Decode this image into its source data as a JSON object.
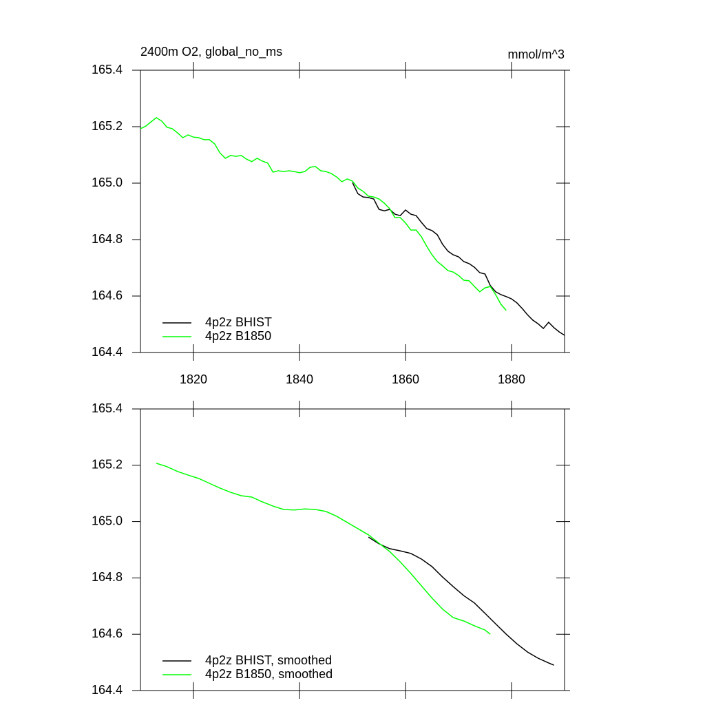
{
  "chart_data": [
    {
      "type": "line",
      "title": "2400m O2, global_no_ms",
      "subtitle": "mmol/m^3",
      "xlim": [
        1810,
        1890
      ],
      "xticks": [
        1820,
        1840,
        1860,
        1880
      ],
      "show_xtick_labels": true,
      "ylim": [
        164.4,
        165.4
      ],
      "yticks": [
        164.4,
        164.6,
        164.8,
        {
          "value": 165,
          "label": "165.0"
        },
        165.2,
        165.4
      ],
      "legend": "lower left",
      "series": [
        {
          "name": "4p2z BHIST",
          "color": "#000000",
          "x": [
            1850,
            1851,
            1852,
            1853,
            1854,
            1855,
            1856,
            1857,
            1858,
            1859,
            1860,
            1861,
            1862,
            1863,
            1864,
            1865,
            1866,
            1867,
            1868,
            1869,
            1870,
            1871,
            1872,
            1873,
            1874,
            1875,
            1876,
            1877,
            1878,
            1879,
            1880,
            1881,
            1882,
            1883,
            1884,
            1885,
            1886,
            1887,
            1888,
            1889,
            1890
          ],
          "values": [
            165.002,
            164.963,
            164.951,
            164.949,
            164.944,
            164.907,
            164.902,
            164.907,
            164.89,
            164.885,
            164.905,
            164.89,
            164.885,
            164.861,
            164.839,
            164.832,
            164.817,
            164.783,
            164.759,
            164.746,
            164.739,
            164.722,
            164.715,
            164.702,
            164.683,
            164.678,
            164.637,
            164.615,
            164.605,
            164.598,
            164.59,
            164.576,
            164.556,
            164.534,
            164.515,
            164.502,
            164.485,
            164.507,
            164.488,
            164.473,
            164.461
          ]
        },
        {
          "name": "4p2z B1850",
          "color": "#00ff00",
          "x": [
            1810,
            1811,
            1812,
            1813,
            1814,
            1815,
            1816,
            1817,
            1818,
            1819,
            1820,
            1821,
            1822,
            1823,
            1824,
            1825,
            1826,
            1827,
            1828,
            1829,
            1830,
            1831,
            1832,
            1833,
            1834,
            1835,
            1836,
            1837,
            1838,
            1839,
            1840,
            1841,
            1842,
            1843,
            1844,
            1845,
            1846,
            1847,
            1848,
            1849,
            1850,
            1851,
            1852,
            1853,
            1854,
            1855,
            1856,
            1857,
            1858,
            1859,
            1860,
            1861,
            1862,
            1863,
            1864,
            1865,
            1866,
            1867,
            1868,
            1869,
            1870,
            1871,
            1872,
            1873,
            1874,
            1875,
            1876,
            1877,
            1878,
            1879
          ],
          "values": [
            165.193,
            165.202,
            165.217,
            165.232,
            165.22,
            165.198,
            165.193,
            165.178,
            165.161,
            165.171,
            165.163,
            165.161,
            165.154,
            165.154,
            165.139,
            165.107,
            165.088,
            165.098,
            165.095,
            165.098,
            165.085,
            165.076,
            165.088,
            165.078,
            165.071,
            165.039,
            165.044,
            165.041,
            165.044,
            165.041,
            165.037,
            165.041,
            165.056,
            165.059,
            165.044,
            165.041,
            165.034,
            165.022,
            165.005,
            165.015,
            165.007,
            164.983,
            164.971,
            164.954,
            164.951,
            164.944,
            164.929,
            164.91,
            164.878,
            164.878,
            164.859,
            164.834,
            164.834,
            164.81,
            164.776,
            164.746,
            164.722,
            164.707,
            164.69,
            164.685,
            164.673,
            164.656,
            164.654,
            164.634,
            164.615,
            164.629,
            164.634,
            164.605,
            164.571,
            164.549
          ]
        }
      ]
    },
    {
      "type": "line",
      "xlim": [
        1810,
        1890
      ],
      "xticks": [
        1820,
        1840,
        1860,
        1880
      ],
      "show_xtick_labels": false,
      "ylim": [
        164.4,
        165.4
      ],
      "yticks": [
        164.4,
        164.6,
        164.8,
        {
          "value": 165,
          "label": "165.0"
        },
        165.2,
        165.4
      ],
      "legend": "lower left",
      "series": [
        {
          "name": "4p2z BHIST, smoothed",
          "color": "#000000",
          "x": [
            1853,
            1855,
            1857,
            1859,
            1861,
            1863,
            1865,
            1867,
            1869,
            1871,
            1873,
            1875,
            1877,
            1879,
            1881,
            1883,
            1885,
            1887,
            1888
          ],
          "values": [
            164.945,
            164.921,
            164.904,
            164.896,
            164.887,
            164.867,
            164.84,
            164.803,
            164.769,
            164.737,
            164.711,
            164.674,
            164.637,
            164.6,
            164.566,
            164.537,
            164.515,
            164.498,
            164.49
          ]
        },
        {
          "name": "4p2z B1850, smoothed",
          "color": "#00ff00",
          "x": [
            1813,
            1815,
            1817,
            1819,
            1821,
            1823,
            1825,
            1827,
            1829,
            1831,
            1833,
            1835,
            1837,
            1839,
            1841,
            1843,
            1845,
            1847,
            1849,
            1851,
            1853,
            1855,
            1857,
            1859,
            1861,
            1863,
            1865,
            1867,
            1869,
            1871,
            1873,
            1875,
            1876
          ],
          "values": [
            165.207,
            165.195,
            165.178,
            165.165,
            165.153,
            165.136,
            165.119,
            165.104,
            165.092,
            165.087,
            165.07,
            165.055,
            165.043,
            165.041,
            165.045,
            165.043,
            165.036,
            165.019,
            164.997,
            164.975,
            164.953,
            164.923,
            164.894,
            164.857,
            164.816,
            164.772,
            164.728,
            164.689,
            164.659,
            164.647,
            164.63,
            164.615,
            164.6
          ]
        }
      ]
    }
  ]
}
